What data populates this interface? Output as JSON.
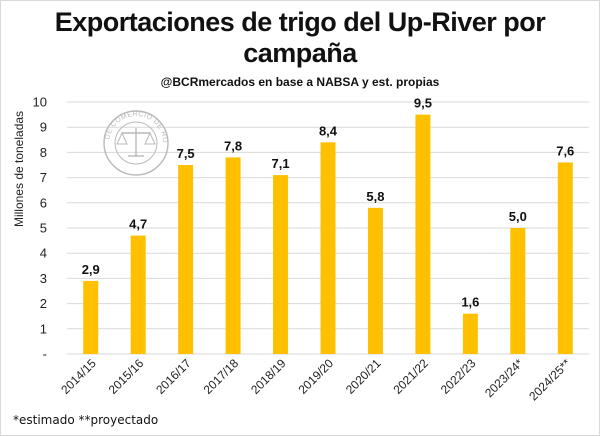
{
  "chart_data": {
    "type": "bar",
    "title": "Exportaciones de trigo del Up-River por campaña",
    "subtitle": "@BCRmercados en base a NABSA y est. propias",
    "xlabel": "",
    "ylabel": "Millones de toneladas",
    "categories": [
      "2014/15",
      "2015/16",
      "2016/17",
      "2017/18",
      "2018/19",
      "2019/20",
      "2020/21",
      "2021/22",
      "2022/23",
      "2023/24*",
      "2024/25**"
    ],
    "values": [
      2.9,
      4.7,
      7.5,
      7.8,
      7.1,
      8.4,
      5.8,
      9.5,
      1.6,
      5.0,
      7.6
    ],
    "data_labels": [
      "2,9",
      "4,7",
      "7,5",
      "7,8",
      "7,1",
      "8,4",
      "5,8",
      "9,5",
      "1,6",
      "5,0",
      "7,6"
    ],
    "y_tick_labels": [
      "-",
      "1",
      "2",
      "3",
      "4",
      "5",
      "6",
      "7",
      "8",
      "9",
      "10"
    ],
    "ylim": [
      0,
      10
    ],
    "grid": true,
    "legend": "none",
    "bar_color": "#FFC000",
    "grid_color": "#d9d9d9"
  },
  "watermark": {
    "text": "BOLSA DE COMERCIO DE ROSARIO",
    "icon": "scales-seal-icon",
    "color": "#b9b9b9"
  },
  "footnote": "*estimado  **proyectado"
}
